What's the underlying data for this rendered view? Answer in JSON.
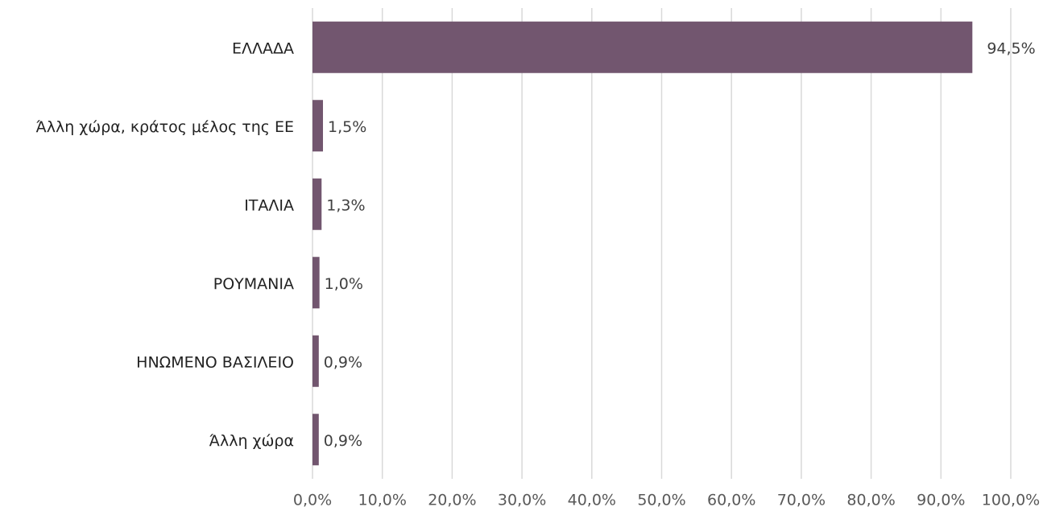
{
  "chart_data": {
    "type": "bar",
    "orientation": "horizontal",
    "categories": [
      "ΕΛΛΑΔΑ",
      "Άλλη χώρα, κράτος μέλος της ΕΕ",
      "ΙΤΑΛΙΑ",
      "ΡΟΥΜΑΝΙΑ",
      "ΗΝΩΜΕΝΟ ΒΑΣΙΛΕΙΟ",
      "Άλλη χώρα"
    ],
    "values": [
      94.5,
      1.5,
      1.3,
      1.0,
      0.9,
      0.9
    ],
    "value_labels": [
      "94,5%",
      "1,5%",
      "1,3%",
      "1,0%",
      "0,9%",
      "0,9%"
    ],
    "color": "#72566f",
    "xlim": [
      0,
      100
    ],
    "xticks": [
      {
        "value": 0,
        "label": "0,0%"
      },
      {
        "value": 10,
        "label": "10,0%"
      },
      {
        "value": 20,
        "label": "20,0%"
      },
      {
        "value": 30,
        "label": "30,0%"
      },
      {
        "value": 40,
        "label": "40,0%"
      },
      {
        "value": 50,
        "label": "50,0%"
      },
      {
        "value": 60,
        "label": "60,0%"
      },
      {
        "value": 70,
        "label": "70,0%"
      },
      {
        "value": 80,
        "label": "80,0%"
      },
      {
        "value": 90,
        "label": "90,0%"
      },
      {
        "value": 100,
        "label": "100,0%"
      }
    ],
    "grid": true
  }
}
